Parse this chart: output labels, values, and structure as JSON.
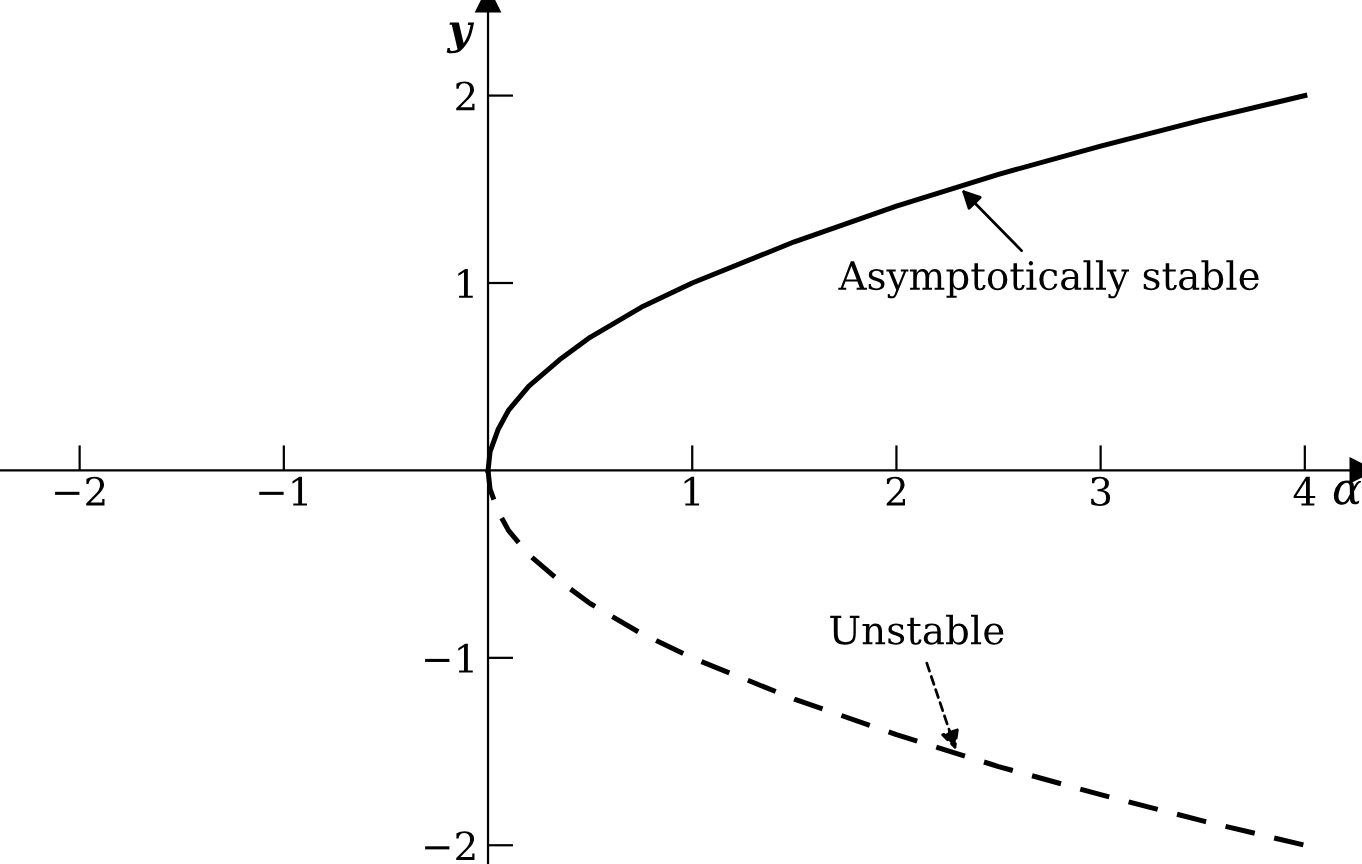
{
  "chart_data": {
    "type": "line",
    "xlabel": "α",
    "ylabel": "y",
    "xlim": [
      -2.39,
      4.28
    ],
    "ylim": [
      -2.1,
      2.51
    ],
    "xticks": [
      {
        "value": -2,
        "label": "−2"
      },
      {
        "value": -1,
        "label": "−1"
      },
      1,
      2,
      3,
      4
    ],
    "yticks": [
      {
        "value": -2,
        "label": "−2"
      },
      {
        "value": -1,
        "label": "−1"
      },
      1,
      2
    ],
    "grid": false,
    "marker": "none",
    "series": [
      {
        "color": "#000000",
        "line_style": "solid",
        "x": [
          0,
          0.01,
          0.05,
          0.1,
          0.2,
          0.35,
          0.5,
          0.75,
          1,
          1.5,
          2,
          2.5,
          3,
          3.5,
          4
        ],
        "values": [
          0,
          0.1,
          0.22,
          0.32,
          0.45,
          0.59,
          0.71,
          0.87,
          1,
          1.22,
          1.41,
          1.58,
          1.73,
          1.87,
          2
        ]
      },
      {
        "color": "#000000",
        "line_style": "dashed",
        "x": [
          0,
          0.01,
          0.05,
          0.1,
          0.2,
          0.35,
          0.5,
          0.75,
          1,
          1.5,
          2,
          2.5,
          3,
          3.5,
          4
        ],
        "values": [
          0,
          -0.1,
          -0.22,
          -0.32,
          -0.45,
          -0.59,
          -0.71,
          -0.87,
          -1,
          -1.22,
          -1.41,
          -1.58,
          -1.73,
          -1.87,
          -2
        ]
      }
    ],
    "annotations": [
      {
        "text": "Asymptotically stable",
        "x": 2.3,
        "y": 1.52
      },
      {
        "text": "Unstable",
        "x": 2.3,
        "y": -1.52
      }
    ]
  }
}
